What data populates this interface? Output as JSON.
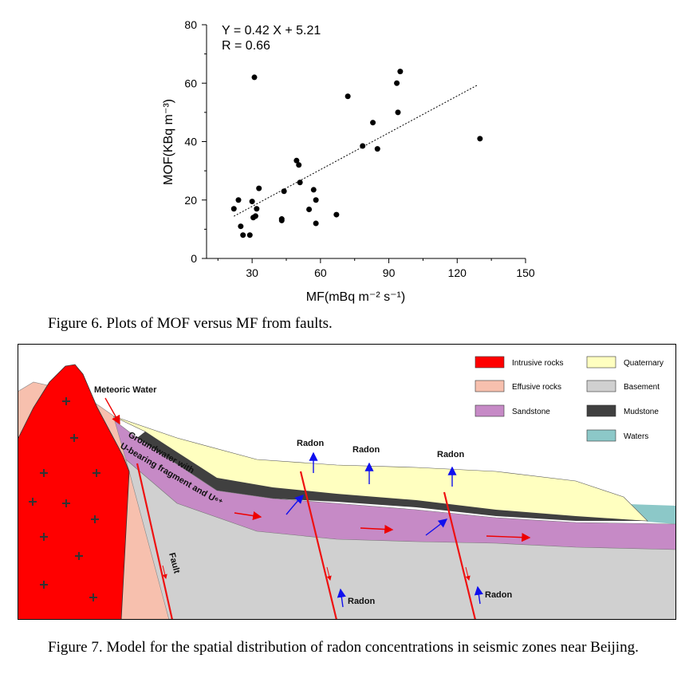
{
  "figure6": {
    "caption": "Figure 6. Plots of MOF versus MF from faults.",
    "chart_data": {
      "type": "scatter",
      "xlabel": "MF(mBq m⁻² s⁻¹)",
      "ylabel": "MOF(KBq m⁻³)",
      "xlim": [
        10,
        150
      ],
      "ylim": [
        0,
        80
      ],
      "x_ticks": [
        "30",
        "60",
        "90",
        "120",
        "150"
      ],
      "y_ticks": [
        "0",
        "20",
        "40",
        "60",
        "80"
      ],
      "x_tick_values": [
        30,
        60,
        90,
        120,
        150
      ],
      "y_tick_values": [
        0,
        20,
        40,
        60,
        80
      ],
      "equation": "Y = 0.42 X + 5.21",
      "r_value": "R = 0.66",
      "fit": {
        "slope": 0.42,
        "intercept": 5.21,
        "x_range": [
          22,
          129
        ]
      },
      "points": [
        [
          22,
          17
        ],
        [
          24,
          20
        ],
        [
          25,
          11
        ],
        [
          26,
          8
        ],
        [
          29,
          8
        ],
        [
          30,
          19.5
        ],
        [
          30.5,
          14
        ],
        [
          31,
          62
        ],
        [
          31.5,
          14.5
        ],
        [
          32,
          17
        ],
        [
          33,
          24
        ],
        [
          43,
          13.5
        ],
        [
          43,
          13
        ],
        [
          44,
          23
        ],
        [
          49.5,
          33.5
        ],
        [
          50.5,
          32
        ],
        [
          51,
          26
        ],
        [
          55,
          16.8
        ],
        [
          57,
          23.5
        ],
        [
          58,
          20
        ],
        [
          58,
          12
        ],
        [
          67,
          15
        ],
        [
          72,
          55.5
        ],
        [
          78.5,
          38.5
        ],
        [
          83,
          46.5
        ],
        [
          85,
          37.5
        ],
        [
          93.5,
          60
        ],
        [
          94,
          50
        ],
        [
          95,
          64
        ],
        [
          130,
          41
        ]
      ],
      "grid": false,
      "point_color": "#000000"
    }
  },
  "figure7": {
    "caption": "Figure 7. Model for the spatial distribution of radon concentrations in seismic zones near Beijing.",
    "legend": [
      {
        "label": "Intrusive rocks",
        "color": "#ff0000"
      },
      {
        "label": "Quaternary",
        "color": "#ffffc0"
      },
      {
        "label": "Effusive rocks",
        "color": "#f7c0ae"
      },
      {
        "label": "Basement",
        "color": "#d0d0d0"
      },
      {
        "label": "Sandstone",
        "color": "#c68ac6"
      },
      {
        "label": "Mudstone",
        "color": "#404040"
      },
      {
        "label": "Waters",
        "color": "#8cc8c8"
      }
    ],
    "labels": {
      "meteoric_water": "Meteoric Water",
      "groundwater_line1": "Groundwater with",
      "groundwater_line2": "U-bearing fragment and U⁶⁺",
      "fault": "Fault",
      "radon": "Radon"
    }
  }
}
